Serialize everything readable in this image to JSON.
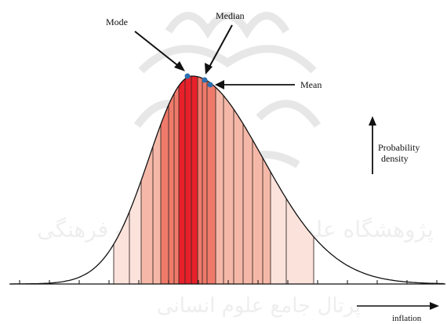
{
  "labels": {
    "mode": "Mode",
    "median": "Median",
    "mean": "Mean",
    "density_line1": "Probability",
    "density_line2": "density",
    "x_axis": "inflation"
  },
  "watermark": {
    "text_line1": "پژوهشگاه علوم انسانی و مطالعات فرهنگی",
    "text_line2": "پرتال جامع علوم انسانی"
  },
  "colors": {
    "peak_band": "#e8202a",
    "inner_band": "#ef7a6a",
    "mid_band": "#f5b8a8",
    "outer_band": "#fbe3dc",
    "marker": "#2a6fb0",
    "curve": "#111111",
    "watermark": "#c9c9c9"
  }
}
